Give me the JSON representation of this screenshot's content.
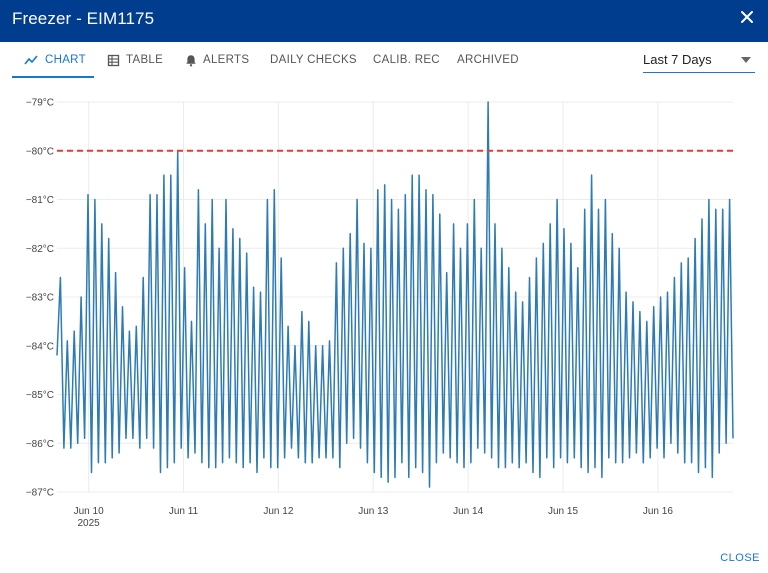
{
  "window": {
    "title": "Freezer - EIM1175"
  },
  "tabs": [
    {
      "label": "CHART",
      "icon": "chart-line-icon",
      "active": true
    },
    {
      "label": "TABLE",
      "icon": "table-icon",
      "active": false
    },
    {
      "label": "ALERTS",
      "icon": "bell-icon",
      "active": false
    },
    {
      "label": "DAILY CHECKS",
      "active": false
    },
    {
      "label": "CALIB. REC",
      "active": false
    },
    {
      "label": "ARCHIVED",
      "active": false
    }
  ],
  "range_select": {
    "value": "Last 7 Days"
  },
  "footer": {
    "close_label": "CLOSE"
  },
  "colors": {
    "header": "#003d8f",
    "accent": "#1976d2",
    "series": "#2e7bb4",
    "threshold": "#e53935"
  },
  "chart_data": {
    "type": "line",
    "y_tick_labels": [
      "−79°C",
      "−80°C",
      "−81°C",
      "−82°C",
      "−83°C",
      "−84°C",
      "−85°C",
      "−86°C",
      "−87°C"
    ],
    "x_tick_labels": [
      "Jun 10",
      "Jun 11",
      "Jun 12",
      "Jun 13",
      "Jun 14",
      "Jun 15",
      "Jun 16"
    ],
    "x_year_label": "2025",
    "ylim": [
      -87,
      -79
    ],
    "xlim": [
      "2025-06-09 16:00",
      "2025-06-16 19:00"
    ],
    "threshold": {
      "value": -80,
      "style": "dashed",
      "color": "#e53935"
    },
    "grid": true,
    "series": [
      {
        "color": "#2e7bb4",
        "x_start": "2025-06-09 16:00",
        "x_end": "2025-06-16 19:00",
        "sample_interval_min": 30,
        "peaks": [
          -82.6,
          -83.9,
          -83.7,
          -83.0,
          -80.9,
          -81.0,
          -81.5,
          -81.8,
          -82.5,
          -83.2,
          -83.7,
          -83.6,
          -82.6,
          -80.9,
          -80.9,
          -80.5,
          -80.5,
          -80.0,
          -82.4,
          -83.5,
          -80.8,
          -81.5,
          -81.0,
          -82.0,
          -81.0,
          -81.6,
          -81.8,
          -82.1,
          -82.8,
          -82.9,
          -81.0,
          -80.8,
          -82.2,
          -83.6,
          -84.0,
          -83.3,
          -83.5,
          -84.0,
          -84.0,
          -83.9,
          -82.3,
          -82.0,
          -81.7,
          -81.0,
          -81.9,
          -82.0,
          -80.8,
          -80.7,
          -81.0,
          -81.2,
          -80.9,
          -80.5,
          -80.5,
          -80.8,
          -80.9,
          -81.3,
          -82.5,
          -81.5,
          -82.0,
          -81.5,
          -81.0,
          -82.0,
          -79.0,
          -81.5,
          -82.0,
          -82.4,
          -82.9,
          -83.1,
          -82.6,
          -82.2,
          -81.9,
          -81.5,
          -81.0,
          -81.6,
          -81.9,
          -82.4,
          -81.2,
          -80.5,
          -81.2,
          -81.0,
          -81.7,
          -82.0,
          -82.9,
          -83.1,
          -83.3,
          -83.5,
          -83.2,
          -83.0,
          -82.9,
          -82.6,
          -82.3,
          -82.2,
          -81.8,
          -81.4,
          -81.0,
          -81.2,
          -81.2,
          -81.0
        ],
        "troughs": [
          -86.1,
          -86.1,
          -86.0,
          -85.9,
          -86.6,
          -86.4,
          -86.4,
          -86.3,
          -86.2,
          -85.9,
          -85.9,
          -86.1,
          -85.9,
          -86.1,
          -86.6,
          -86.5,
          -86.4,
          -86.1,
          -86.3,
          -86.2,
          -86.4,
          -86.5,
          -86.5,
          -86.4,
          -86.3,
          -86.4,
          -86.5,
          -86.4,
          -86.6,
          -86.3,
          -86.5,
          -86.5,
          -86.3,
          -86.1,
          -86.3,
          -86.4,
          -86.4,
          -86.3,
          -86.3,
          -86.3,
          -86.5,
          -86.0,
          -85.9,
          -86.1,
          -86.4,
          -86.6,
          -86.7,
          -86.8,
          -86.7,
          -86.4,
          -86.7,
          -86.5,
          -86.6,
          -86.9,
          -86.4,
          -86.2,
          -86.3,
          -86.4,
          -86.5,
          -86.4,
          -86.1,
          -86.2,
          -86.3,
          -86.5,
          -86.5,
          -86.4,
          -86.5,
          -86.4,
          -86.6,
          -86.7,
          -86.3,
          -86.5,
          -86.3,
          -86.4,
          -86.3,
          -86.5,
          -86.6,
          -86.5,
          -86.7,
          -86.3,
          -86.4,
          -86.4,
          -86.3,
          -86.2,
          -86.4,
          -86.3,
          -86.1,
          -86.3,
          -86.0,
          -86.2,
          -86.4,
          -86.4,
          -86.6,
          -86.5,
          -86.7,
          -86.2,
          -86.0,
          -85.9
        ]
      }
    ]
  }
}
